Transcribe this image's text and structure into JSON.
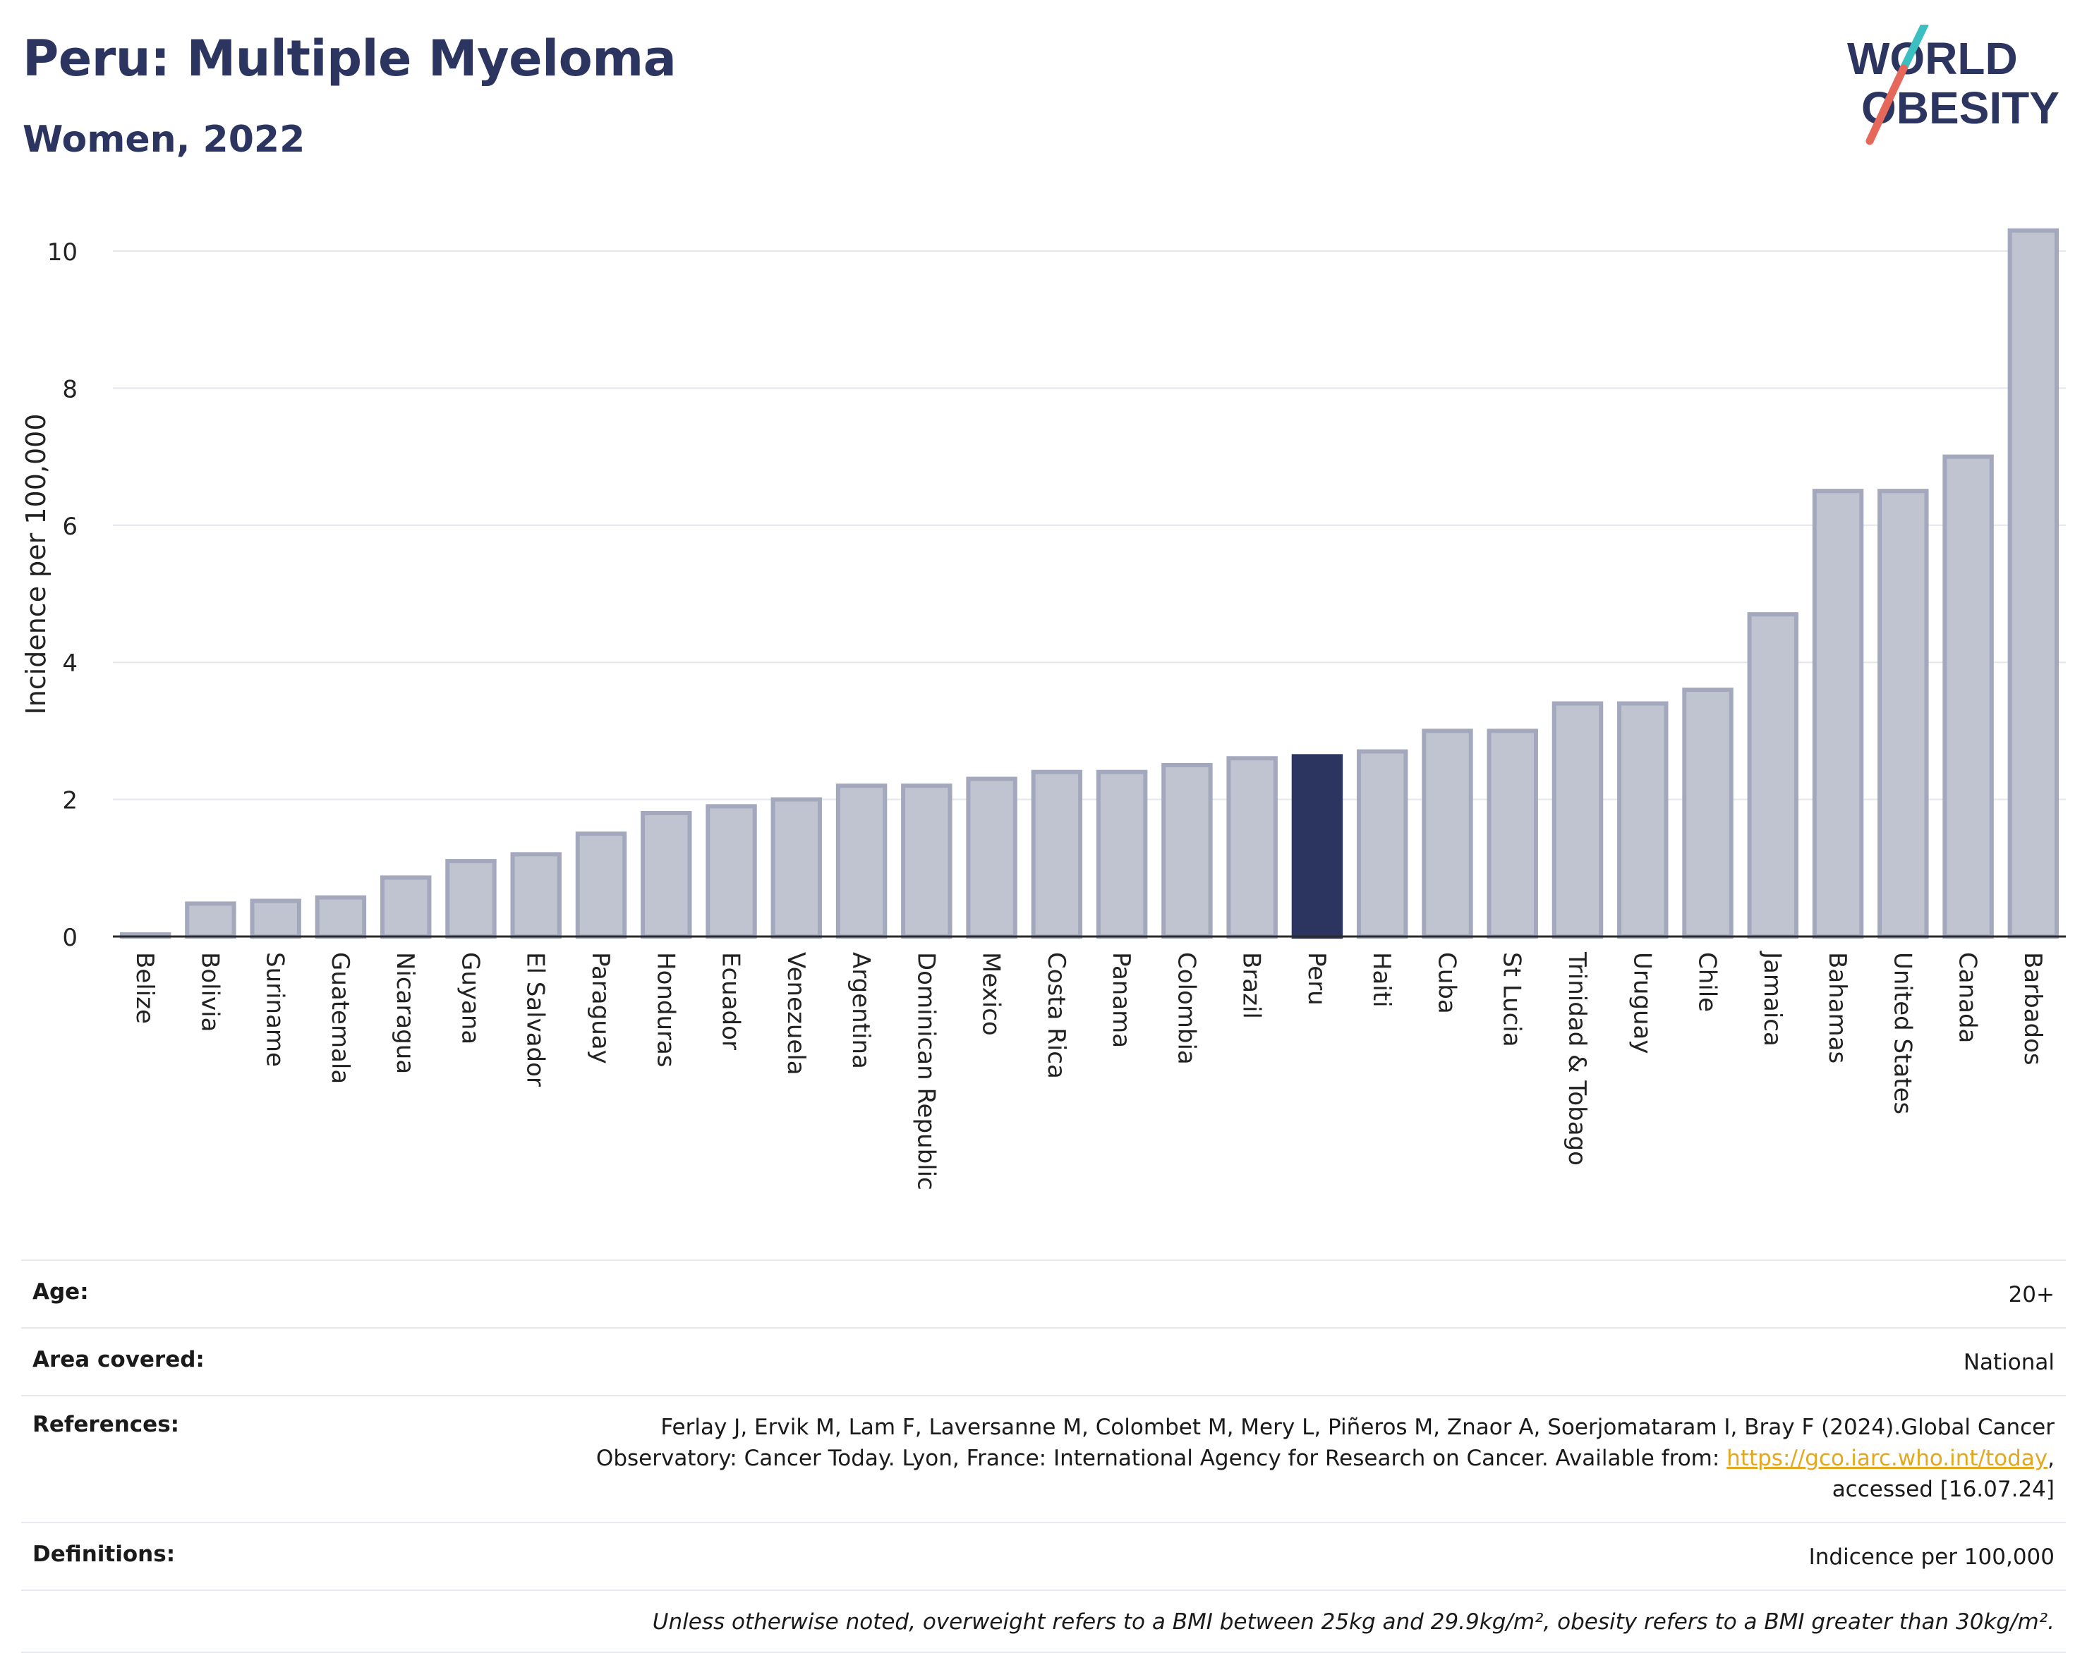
{
  "header": {
    "title": "Peru: Multiple Myeloma",
    "subtitle": "Women, 2022",
    "logo_line1": "WORLD",
    "logo_line2": "OBESITY"
  },
  "chart_data": {
    "type": "bar",
    "ylabel": "Incidence per 100,000",
    "ylim": [
      0,
      10.6
    ],
    "yticks": [
      0,
      2,
      4,
      6,
      8,
      10
    ],
    "grid": true,
    "highlight": "Peru",
    "colors": {
      "bar": "#c0c3d0",
      "bar_edge": "#a3a8bd",
      "highlight": "#2b3560"
    },
    "categories": [
      "Belize",
      "Bolivia",
      "Suriname",
      "Guatemala",
      "Nicaragua",
      "Guyana",
      "El Salvador",
      "Paraguay",
      "Honduras",
      "Ecuador",
      "Venezuela",
      "Argentina",
      "Dominican Republic",
      "Mexico",
      "Costa Rica",
      "Panama",
      "Colombia",
      "Brazil",
      "Peru",
      "Haiti",
      "Cuba",
      "St Lucia",
      "Trinidad & Tobago",
      "Uruguay",
      "Chile",
      "Jamaica",
      "Bahamas",
      "United States",
      "Canada",
      "Barbados"
    ],
    "values": [
      0.03,
      0.48,
      0.52,
      0.57,
      0.86,
      1.1,
      1.2,
      1.5,
      1.8,
      1.9,
      2.0,
      2.2,
      2.2,
      2.3,
      2.4,
      2.4,
      2.5,
      2.6,
      2.63,
      2.7,
      3.0,
      3.0,
      3.4,
      3.4,
      3.6,
      4.7,
      6.5,
      6.5,
      7.0,
      10.3
    ]
  },
  "info": {
    "age_label": "Age:",
    "age_value": "20+",
    "area_label": "Area covered:",
    "area_value": "National",
    "references_label": "References:",
    "references_line1": "Ferlay J, Ervik M, Lam F, Laversanne M, Colombet M, Mery L, Piñeros M, Znaor A, Soerjomataram I, Bray F (2024).Global Cancer",
    "references_line2_pre": "Observatory: Cancer Today. Lyon, France: International Agency for Research on Cancer. Available from: ",
    "references_link": "https://gco.iarc.who.int/today",
    "references_line2_post": ",",
    "references_line3": "accessed [16.07.24]",
    "definitions_label": "Definitions:",
    "definitions_value": "Indicence per 100,000",
    "note": "Unless otherwise noted, overweight refers to a BMI between 25kg and 29.9kg/m², obesity refers to a BMI greater than 30kg/m²."
  }
}
